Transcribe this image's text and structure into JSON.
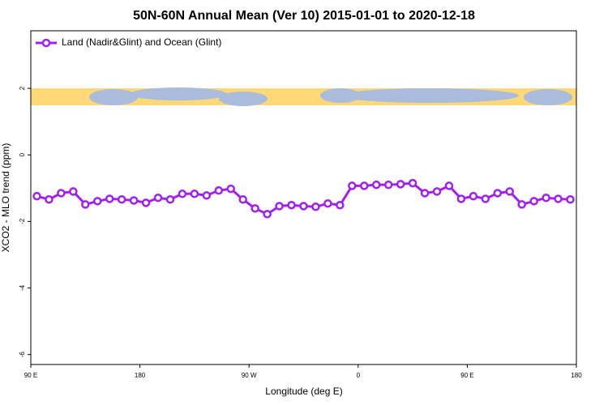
{
  "chart_data": {
    "type": "line",
    "title": "50N-60N Annual Mean (Ver 10)   2015-01-01 to 2020-12-18",
    "x_label": "Longitude (deg E)",
    "y_label": "XCO2 - MLO trend (ppm)",
    "x": [
      95,
      105,
      115,
      125,
      135,
      145,
      155,
      165,
      175,
      185,
      195,
      205,
      215,
      225,
      235,
      245,
      255,
      265,
      275,
      285,
      295,
      305,
      315,
      325,
      335,
      345,
      355,
      365,
      375,
      385,
      395,
      405,
      415,
      425,
      435,
      445,
      455,
      465,
      475,
      485,
      495,
      505,
      515,
      525,
      535
    ],
    "series": [
      {
        "name": "Land (Nadir&Glint) and Ocean (Glint)",
        "color": "#a020f0",
        "values": [
          -1.24,
          -1.34,
          -1.15,
          -1.1,
          -1.49,
          -1.39,
          -1.32,
          -1.34,
          -1.37,
          -1.44,
          -1.29,
          -1.34,
          -1.17,
          -1.17,
          -1.22,
          -1.07,
          -1.02,
          -1.34,
          -1.61,
          -1.78,
          -1.54,
          -1.51,
          -1.54,
          -1.56,
          -1.46,
          -1.51,
          -0.93,
          -0.93,
          -0.9,
          -0.9,
          -0.88,
          -0.85,
          -1.15,
          -1.1,
          -0.93,
          -1.32,
          -1.24,
          -1.32,
          -1.15,
          -1.1,
          -1.49,
          -1.39,
          -1.29,
          -1.32,
          -1.34
        ]
      }
    ],
    "xlim": [
      90,
      540
    ],
    "xticks": [
      {
        "value": 90,
        "label": "90 E"
      },
      180,
      {
        "value": 270,
        "label": "90 W"
      },
      {
        "value": 360,
        "label": "0"
      },
      {
        "value": 450,
        "label": "90 E"
      },
      {
        "value": 540,
        "label": "180"
      }
    ],
    "ylim": [
      -6.3,
      3.73
    ],
    "yticks": [
      2,
      0,
      -2,
      -4,
      -6
    ],
    "legend": "top-left"
  }
}
